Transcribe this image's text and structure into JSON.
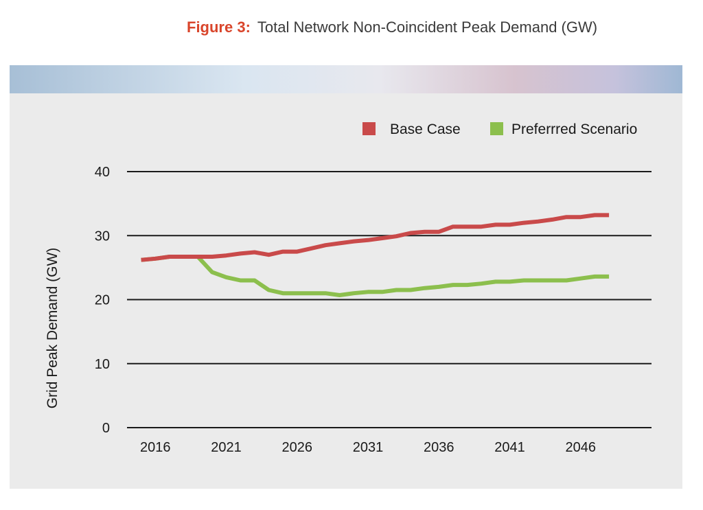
{
  "caption": {
    "label": "Figure 3:",
    "title": "Total Network Non-Coincident Peak Demand (GW)"
  },
  "chart_data": {
    "type": "line",
    "ylabel": "Grid Peak Demand (GW)",
    "xlabel": "",
    "ylim": [
      0,
      40
    ],
    "xlim": [
      2014,
      2051
    ],
    "yticks": [
      0,
      10,
      20,
      30,
      40
    ],
    "xticks": [
      2016,
      2021,
      2026,
      2031,
      2036,
      2041,
      2046
    ],
    "grid": "horizontal",
    "legend_position": "top-right",
    "series": [
      {
        "name": "Base Case",
        "color": "#c94a4a",
        "x": [
          2015,
          2016,
          2017,
          2018,
          2019,
          2020,
          2021,
          2022,
          2023,
          2024,
          2025,
          2026,
          2027,
          2028,
          2029,
          2030,
          2031,
          2032,
          2033,
          2034,
          2035,
          2036,
          2037,
          2038,
          2039,
          2040,
          2041,
          2042,
          2043,
          2044,
          2045,
          2046,
          2047,
          2048
        ],
        "values": [
          26.2,
          26.4,
          26.7,
          26.7,
          26.7,
          26.7,
          26.9,
          27.2,
          27.4,
          27.0,
          27.5,
          27.5,
          28.0,
          28.5,
          28.8,
          29.1,
          29.3,
          29.6,
          29.9,
          30.4,
          30.6,
          30.6,
          31.4,
          31.4,
          31.4,
          31.7,
          31.7,
          32.0,
          32.2,
          32.5,
          32.9,
          32.9,
          33.2,
          33.2
        ]
      },
      {
        "name": "Preferrred Scenario",
        "color": "#8cbf4d",
        "x": [
          2015,
          2016,
          2017,
          2018,
          2019,
          2020,
          2021,
          2022,
          2023,
          2024,
          2025,
          2026,
          2027,
          2028,
          2029,
          2030,
          2031,
          2032,
          2033,
          2034,
          2035,
          2036,
          2037,
          2038,
          2039,
          2040,
          2041,
          2042,
          2043,
          2044,
          2045,
          2046,
          2047,
          2048
        ],
        "values": [
          26.2,
          26.4,
          26.7,
          26.7,
          26.7,
          24.3,
          23.5,
          23.0,
          23.0,
          21.5,
          21.0,
          21.0,
          21.0,
          21.0,
          20.7,
          21.0,
          21.2,
          21.2,
          21.5,
          21.5,
          21.8,
          22.0,
          22.3,
          22.3,
          22.5,
          22.8,
          22.8,
          23.0,
          23.0,
          23.0,
          23.0,
          23.3,
          23.6,
          23.6
        ]
      }
    ]
  }
}
